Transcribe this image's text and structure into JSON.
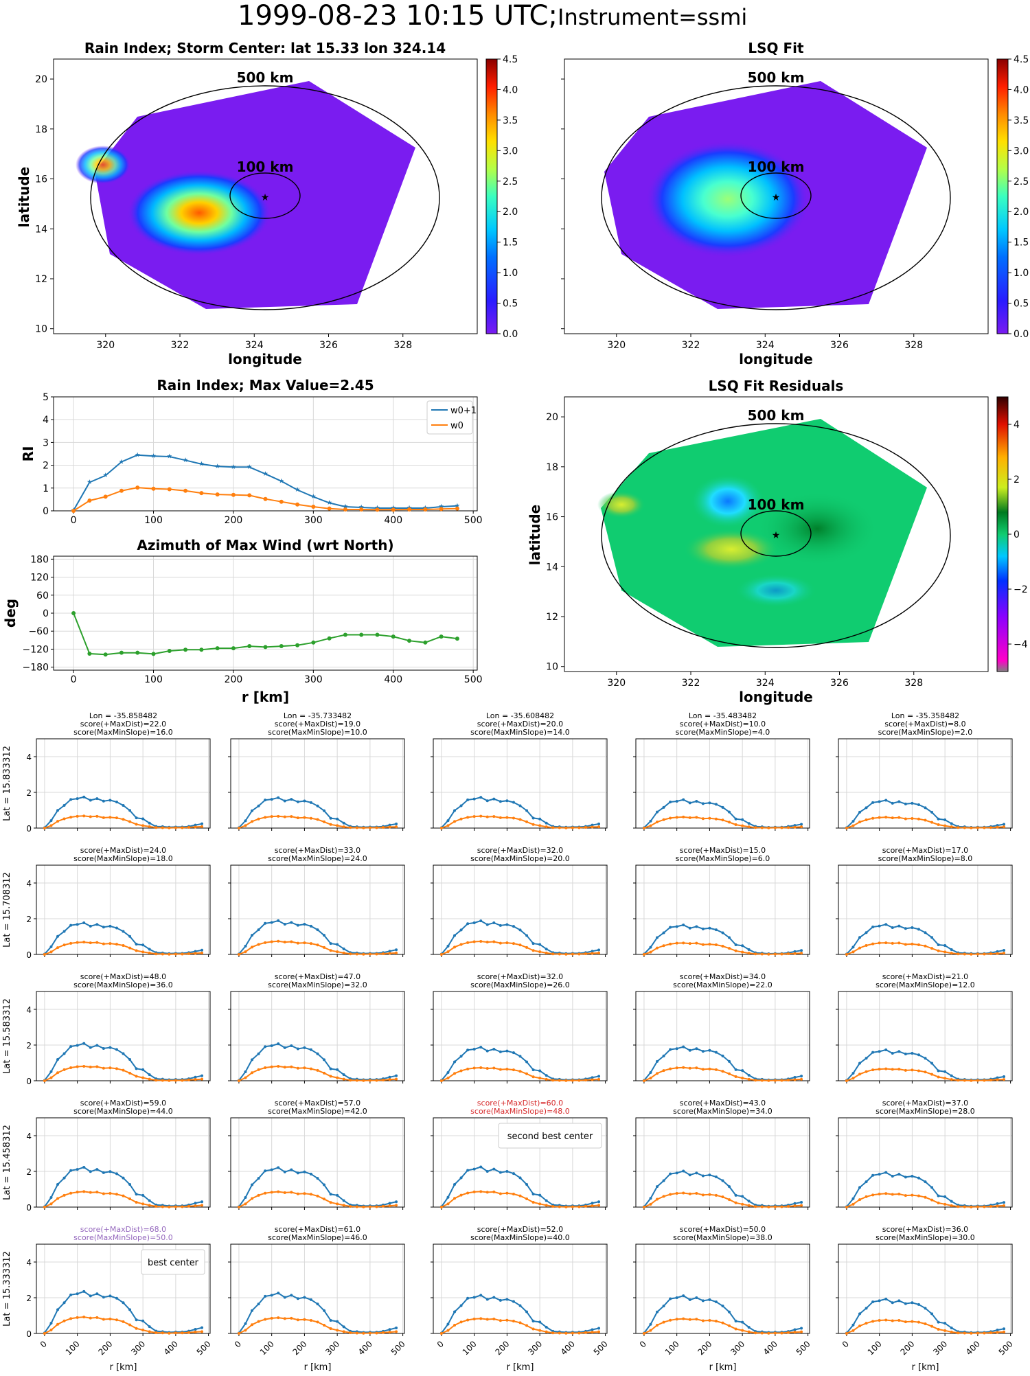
{
  "page": {
    "title_main": "1999-08-23 10:15 UTC;",
    "title_instrument": "Instrument=ssmi"
  },
  "maps": [
    {
      "title": "Rain Index; Storm Center: lat 15.33 lon 324.14",
      "xlabel": "longitude",
      "ylabel": "latitude",
      "xticks": [
        "320",
        "322",
        "324",
        "326",
        "328"
      ],
      "yticks": [
        "10",
        "12",
        "14",
        "16",
        "18",
        "20"
      ],
      "ring_outer_label": "500 km",
      "ring_inner_label": "100 km",
      "colorbar": {
        "ticks": [
          "0.0",
          "0.5",
          "1.0",
          "1.5",
          "2.0",
          "2.5",
          "3.0",
          "3.5",
          "4.0",
          "4.5"
        ],
        "colormap": "jet"
      }
    },
    {
      "title": "LSQ Fit",
      "xlabel": "longitude",
      "ylabel": "",
      "xticks": [
        "320",
        "322",
        "324",
        "326",
        "328"
      ],
      "yticks": [],
      "ring_outer_label": "500 km",
      "ring_inner_label": "100 km",
      "colorbar": {
        "ticks": [
          "0.0",
          "0.5",
          "1.0",
          "1.5",
          "2.0",
          "2.5",
          "3.0",
          "3.5",
          "4.0",
          "4.5"
        ],
        "colormap": "jet"
      }
    },
    {
      "title": "LSQ Fit Residuals",
      "xlabel": "longitude",
      "ylabel": "latitude",
      "xticks": [
        "320",
        "322",
        "324",
        "326",
        "328"
      ],
      "yticks": [
        "10",
        "12",
        "14",
        "16",
        "18",
        "20"
      ],
      "ring_outer_label": "500 km",
      "ring_inner_label": "100 km",
      "colorbar": {
        "ticks": [
          "−4",
          "−2",
          "0",
          "2",
          "4"
        ],
        "colormap": "diverging"
      }
    }
  ],
  "chart_data": [
    {
      "type": "line",
      "title": "Rain Index; Max Value=2.45",
      "xlabel": "",
      "ylabel": "RI",
      "xlim": [
        -25,
        505
      ],
      "ylim": [
        0,
        5
      ],
      "xticks": [
        "0",
        "100",
        "200",
        "300",
        "400",
        "500"
      ],
      "yticks": [
        "0",
        "1",
        "2",
        "3",
        "4",
        "5"
      ],
      "grid": true,
      "legend_position": "top-right",
      "x": [
        0,
        20,
        40,
        60,
        80,
        100,
        120,
        140,
        160,
        180,
        200,
        220,
        240,
        260,
        280,
        300,
        320,
        340,
        360,
        380,
        400,
        420,
        440,
        460,
        480
      ],
      "series": [
        {
          "name": "w0+1",
          "color": "#1f77b4",
          "marker": "star",
          "values": [
            0.02,
            1.25,
            1.55,
            2.15,
            2.45,
            2.4,
            2.38,
            2.22,
            2.05,
            1.95,
            1.92,
            1.92,
            1.62,
            1.3,
            0.92,
            0.62,
            0.35,
            0.18,
            0.15,
            0.12,
            0.12,
            0.12,
            0.12,
            0.18,
            0.22
          ]
        },
        {
          "name": "w0",
          "color": "#ff7f0e",
          "marker": "dot",
          "values": [
            0.0,
            0.45,
            0.62,
            0.88,
            1.02,
            0.97,
            0.95,
            0.88,
            0.78,
            0.72,
            0.7,
            0.68,
            0.52,
            0.4,
            0.28,
            0.18,
            0.1,
            0.06,
            0.06,
            0.05,
            0.05,
            0.06,
            0.06,
            0.08,
            0.1
          ]
        }
      ]
    },
    {
      "type": "line",
      "title": "Azimuth of Max Wind (wrt North)",
      "xlabel": "r [km]",
      "ylabel": "deg",
      "xlim": [
        -25,
        505
      ],
      "ylim": [
        -190,
        190
      ],
      "xticks": [
        "0",
        "100",
        "200",
        "300",
        "400",
        "500"
      ],
      "yticks": [
        "180",
        "120",
        "60",
        "0",
        "−60",
        "−120",
        "−180"
      ],
      "grid": true,
      "x": [
        0,
        20,
        40,
        60,
        80,
        100,
        120,
        140,
        160,
        180,
        200,
        220,
        240,
        260,
        280,
        300,
        320,
        340,
        360,
        380,
        400,
        420,
        440,
        460,
        480
      ],
      "series": [
        {
          "name": "",
          "color": "#2ca02c",
          "marker": "dot",
          "values": [
            0,
            -135,
            -138,
            -132,
            -132,
            -136,
            -126,
            -122,
            -122,
            -117,
            -117,
            -110,
            -113,
            -110,
            -107,
            -98,
            -84,
            -72,
            -72,
            -72,
            -78,
            -92,
            -98,
            -78,
            -85
          ]
        }
      ]
    },
    {
      "type": "line",
      "grid_title": "Ensemble of candidate centers",
      "xlabel": "r [km]",
      "xticks": [
        "0",
        "100",
        "200",
        "300",
        "400",
        "500"
      ],
      "yticks": [
        "0",
        "2",
        "4"
      ],
      "ylim": [
        0,
        5
      ],
      "xlim": [
        -25,
        505
      ],
      "x": [
        0,
        20,
        40,
        60,
        80,
        100,
        120,
        140,
        160,
        180,
        200,
        220,
        240,
        260,
        280,
        300,
        320,
        340,
        360,
        380,
        400,
        420,
        440,
        460,
        480
      ],
      "rows": [
        {
          "label": "Lat = 15.833312",
          "cells": [
            {
              "header": [
                "Lon = -35.858482",
                "score(+MaxDist)=22.0",
                "score(MaxMinSlope)=16.0"
              ],
              "highlight": ""
            },
            {
              "header": [
                "Lon = -35.733482",
                "score(+MaxDist)=19.0",
                "score(MaxMinSlope)=10.0"
              ],
              "highlight": ""
            },
            {
              "header": [
                "Lon = -35.608482",
                "score(+MaxDist)=20.0",
                "score(MaxMinSlope)=14.0"
              ],
              "highlight": ""
            },
            {
              "header": [
                "Lon = -35.483482",
                "score(+MaxDist)=10.0",
                "score(MaxMinSlope)=4.0"
              ],
              "highlight": ""
            },
            {
              "header": [
                "Lon = -35.358482",
                "score(+MaxDist)=8.0",
                "score(MaxMinSlope)=2.0"
              ],
              "highlight": ""
            }
          ]
        },
        {
          "label": "Lat = 15.708312",
          "cells": [
            {
              "header": [
                "score(+MaxDist)=24.0",
                "score(MaxMinSlope)=18.0"
              ],
              "highlight": ""
            },
            {
              "header": [
                "score(+MaxDist)=33.0",
                "score(MaxMinSlope)=24.0"
              ],
              "highlight": ""
            },
            {
              "header": [
                "score(+MaxDist)=32.0",
                "score(MaxMinSlope)=20.0"
              ],
              "highlight": ""
            },
            {
              "header": [
                "score(+MaxDist)=15.0",
                "score(MaxMinSlope)=6.0"
              ],
              "highlight": ""
            },
            {
              "header": [
                "score(+MaxDist)=17.0",
                "score(MaxMinSlope)=8.0"
              ],
              "highlight": ""
            }
          ]
        },
        {
          "label": "Lat = 15.583312",
          "cells": [
            {
              "header": [
                "score(+MaxDist)=48.0",
                "score(MaxMinSlope)=36.0"
              ],
              "highlight": ""
            },
            {
              "header": [
                "score(+MaxDist)=47.0",
                "score(MaxMinSlope)=32.0"
              ],
              "highlight": ""
            },
            {
              "header": [
                "score(+MaxDist)=32.0",
                "score(MaxMinSlope)=26.0"
              ],
              "highlight": ""
            },
            {
              "header": [
                "score(+MaxDist)=34.0",
                "score(MaxMinSlope)=22.0"
              ],
              "highlight": ""
            },
            {
              "header": [
                "score(+MaxDist)=21.0",
                "score(MaxMinSlope)=12.0"
              ],
              "highlight": ""
            }
          ]
        },
        {
          "label": "Lat = 15.458312",
          "cells": [
            {
              "header": [
                "score(+MaxDist)=59.0",
                "score(MaxMinSlope)=44.0"
              ],
              "highlight": ""
            },
            {
              "header": [
                "score(+MaxDist)=57.0",
                "score(MaxMinSlope)=42.0"
              ],
              "highlight": ""
            },
            {
              "header": [
                "score(+MaxDist)=60.0",
                "score(MaxMinSlope)=48.0"
              ],
              "highlight": "second",
              "legend": "second best center"
            },
            {
              "header": [
                "score(+MaxDist)=43.0",
                "score(MaxMinSlope)=34.0"
              ],
              "highlight": ""
            },
            {
              "header": [
                "score(+MaxDist)=37.0",
                "score(MaxMinSlope)=28.0"
              ],
              "highlight": ""
            }
          ]
        },
        {
          "label": "Lat = 15.333312",
          "cells": [
            {
              "header": [
                "score(+MaxDist)=68.0",
                "score(MaxMinSlope)=50.0"
              ],
              "highlight": "best",
              "legend": "best center"
            },
            {
              "header": [
                "score(+MaxDist)=61.0",
                "score(MaxMinSlope)=46.0"
              ],
              "highlight": ""
            },
            {
              "header": [
                "score(+MaxDist)=52.0",
                "score(MaxMinSlope)=40.0"
              ],
              "highlight": ""
            },
            {
              "header": [
                "score(+MaxDist)=50.0",
                "score(MaxMinSlope)=38.0"
              ],
              "highlight": ""
            },
            {
              "header": [
                "score(+MaxDist)=36.0",
                "score(MaxMinSlope)=30.0"
              ],
              "highlight": ""
            }
          ]
        }
      ],
      "colors": {
        "w0+1": "#1f77b4",
        "w0": "#ff7f0e",
        "second": "#d62728",
        "best": "#9467bd"
      },
      "base_profile_w0p1": [
        0.02,
        0.45,
        1.05,
        1.35,
        1.7,
        1.75,
        1.85,
        1.65,
        1.75,
        1.6,
        1.65,
        1.55,
        1.35,
        1.05,
        0.6,
        0.55,
        0.3,
        0.1,
        0.08,
        0.05,
        0.06,
        0.06,
        0.1,
        0.18,
        0.25
      ],
      "base_profile_w0": [
        0.0,
        0.15,
        0.4,
        0.55,
        0.65,
        0.7,
        0.72,
        0.68,
        0.7,
        0.62,
        0.64,
        0.6,
        0.52,
        0.38,
        0.22,
        0.15,
        0.08,
        0.03,
        0.02,
        0.01,
        0.02,
        0.02,
        0.04,
        0.06,
        0.08
      ]
    }
  ]
}
